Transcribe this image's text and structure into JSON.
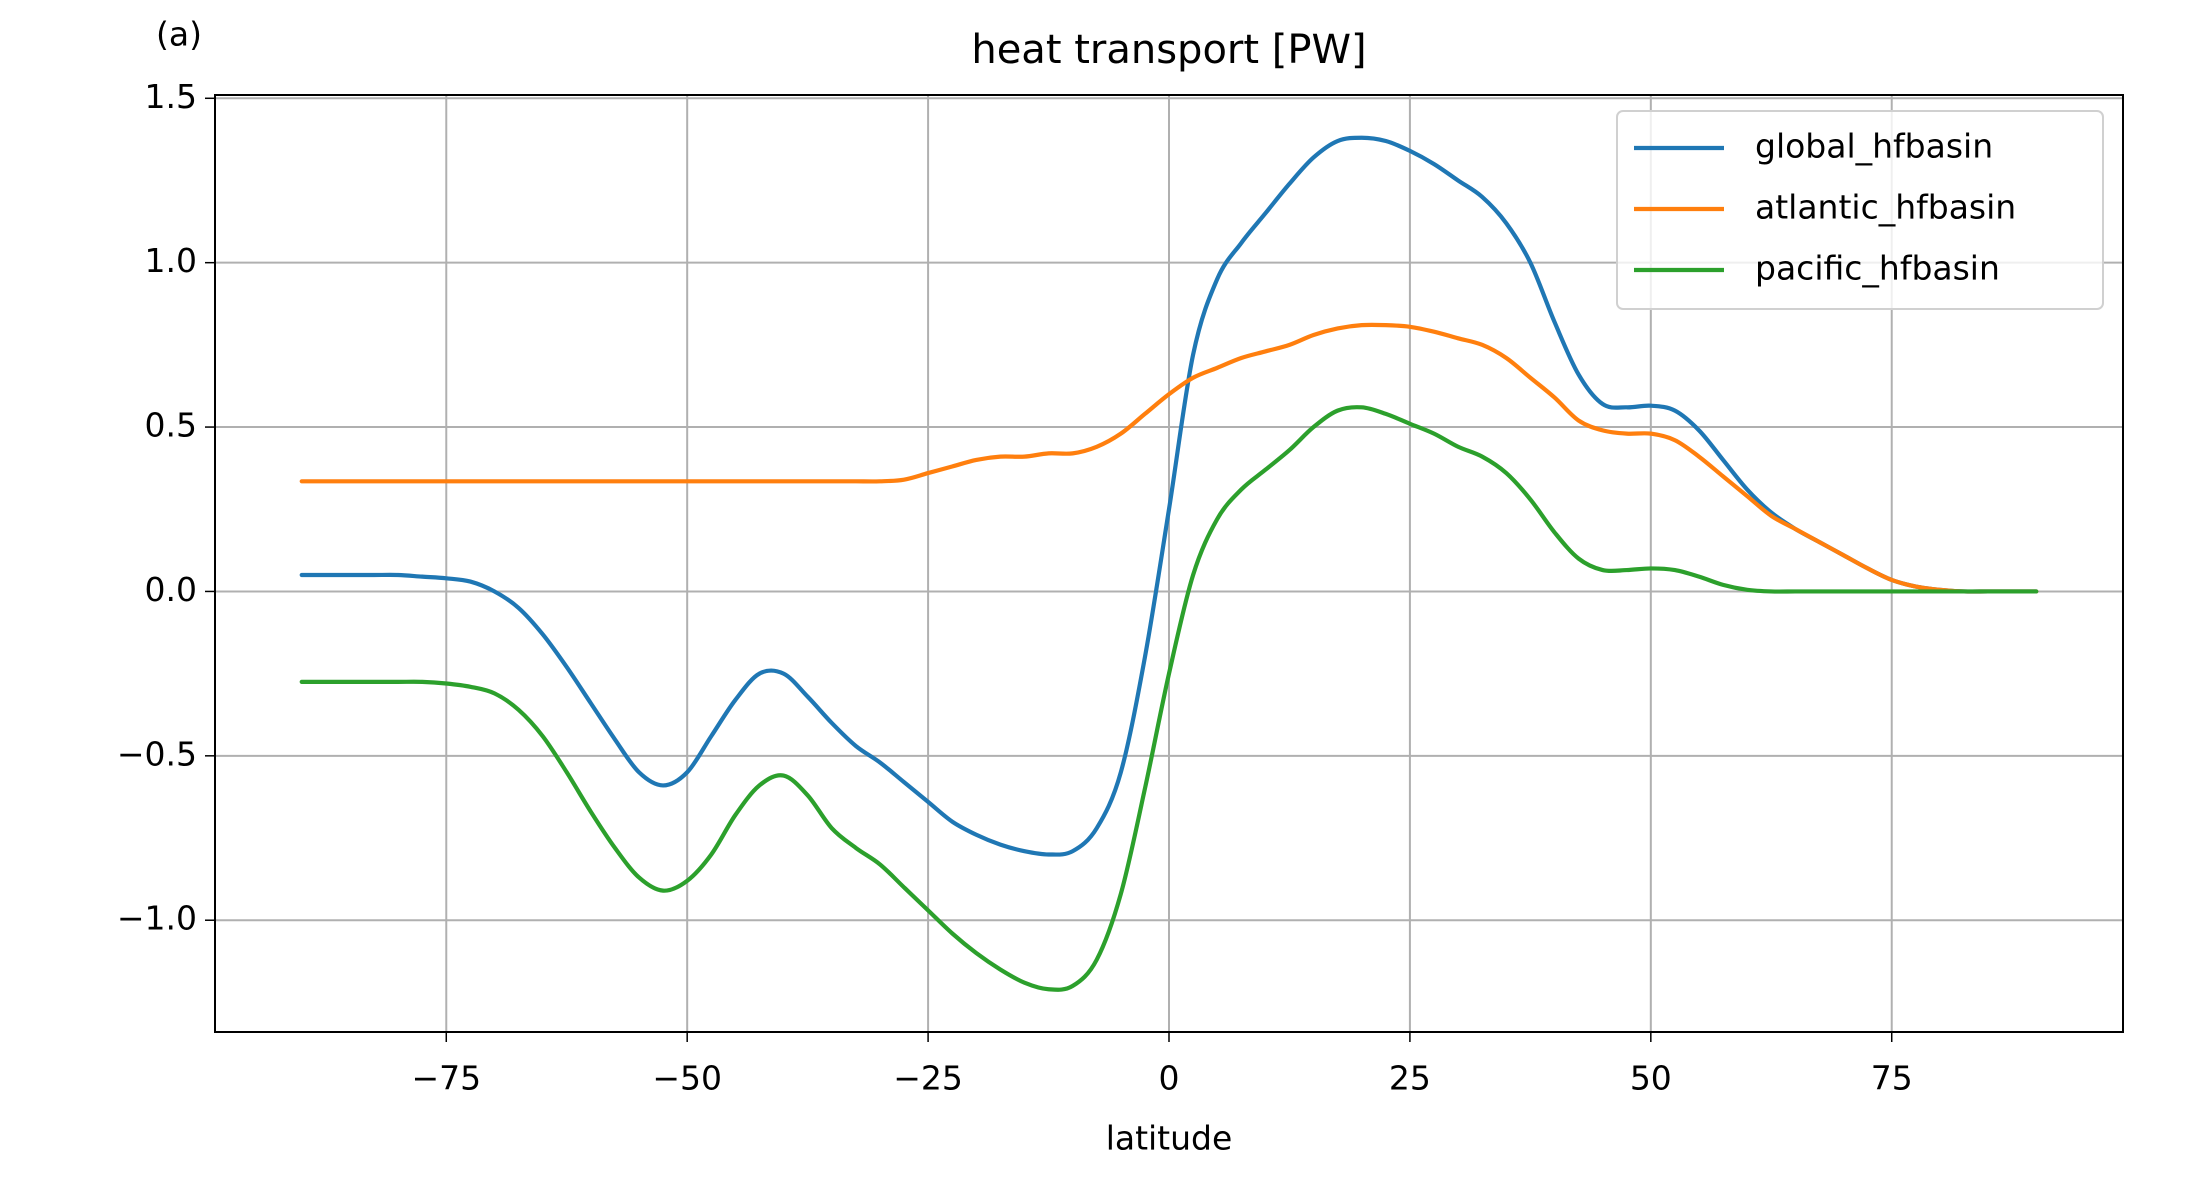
{
  "chart_data": {
    "type": "line",
    "annotation": "(a)",
    "title": "heat transport [PW]",
    "xlabel": "latitude",
    "x": [
      -90,
      -87.5,
      -85,
      -82.5,
      -80,
      -77.5,
      -75,
      -72.5,
      -70,
      -67.5,
      -65,
      -62.5,
      -60,
      -57.5,
      -55,
      -52.5,
      -50,
      -47.5,
      -45,
      -42.5,
      -40,
      -37.5,
      -35,
      -32.5,
      -30,
      -27.5,
      -25,
      -22.5,
      -20,
      -17.5,
      -15,
      -12.5,
      -10,
      -7.5,
      -5,
      -2.5,
      0,
      2.5,
      5,
      7.5,
      10,
      12.5,
      15,
      17.5,
      20,
      22.5,
      25,
      27.5,
      30,
      32.5,
      35,
      37.5,
      40,
      42.5,
      45,
      47.5,
      50,
      52.5,
      55,
      57.5,
      60,
      62.5,
      65,
      67.5,
      70,
      72.5,
      75,
      77.5,
      80,
      82.5,
      85,
      87.5,
      90
    ],
    "series": [
      {
        "name": "global_hfbasin",
        "color": "#1f77b4",
        "values": [
          0.05,
          0.05,
          0.05,
          0.05,
          0.05,
          0.045,
          0.04,
          0.03,
          0,
          -0.05,
          -0.13,
          -0.23,
          -0.34,
          -0.45,
          -0.55,
          -0.59,
          -0.55,
          -0.44,
          -0.33,
          -0.25,
          -0.25,
          -0.32,
          -0.4,
          -0.47,
          -0.52,
          -0.58,
          -0.64,
          -0.7,
          -0.74,
          -0.77,
          -0.79,
          -0.8,
          -0.79,
          -0.72,
          -0.55,
          -0.2,
          0.25,
          0.72,
          0.95,
          1.06,
          1.15,
          1.24,
          1.32,
          1.37,
          1.38,
          1.37,
          1.34,
          1.3,
          1.25,
          1.2,
          1.12,
          1.0,
          0.82,
          0.66,
          0.57,
          0.56,
          0.565,
          0.55,
          0.49,
          0.4,
          0.31,
          0.24,
          0.19,
          0.15,
          0.11,
          0.07,
          0.035,
          0.015,
          0.005,
          0,
          0,
          0,
          0
        ]
      },
      {
        "name": "atlantic_hfbasin",
        "color": "#ff7f0e",
        "values": [
          0.335,
          0.335,
          0.335,
          0.335,
          0.335,
          0.335,
          0.335,
          0.335,
          0.335,
          0.335,
          0.335,
          0.335,
          0.335,
          0.335,
          0.335,
          0.335,
          0.335,
          0.335,
          0.335,
          0.335,
          0.335,
          0.335,
          0.335,
          0.335,
          0.335,
          0.34,
          0.36,
          0.38,
          0.4,
          0.41,
          0.41,
          0.42,
          0.42,
          0.44,
          0.48,
          0.54,
          0.6,
          0.65,
          0.68,
          0.71,
          0.73,
          0.75,
          0.78,
          0.8,
          0.81,
          0.81,
          0.805,
          0.79,
          0.77,
          0.75,
          0.71,
          0.65,
          0.59,
          0.52,
          0.49,
          0.48,
          0.48,
          0.46,
          0.41,
          0.35,
          0.29,
          0.23,
          0.19,
          0.15,
          0.11,
          0.07,
          0.035,
          0.015,
          0.005,
          0,
          0,
          0,
          0
        ]
      },
      {
        "name": "pacific_hfbasin",
        "color": "#2ca02c",
        "values": [
          -0.275,
          -0.275,
          -0.275,
          -0.275,
          -0.275,
          -0.275,
          -0.28,
          -0.29,
          -0.31,
          -0.36,
          -0.44,
          -0.55,
          -0.67,
          -0.78,
          -0.87,
          -0.91,
          -0.88,
          -0.8,
          -0.68,
          -0.59,
          -0.56,
          -0.62,
          -0.72,
          -0.78,
          -0.83,
          -0.9,
          -0.97,
          -1.04,
          -1.1,
          -1.15,
          -1.19,
          -1.21,
          -1.2,
          -1.12,
          -0.92,
          -0.6,
          -0.25,
          0.05,
          0.22,
          0.31,
          0.37,
          0.43,
          0.5,
          0.55,
          0.56,
          0.54,
          0.51,
          0.48,
          0.44,
          0.41,
          0.36,
          0.28,
          0.18,
          0.1,
          0.065,
          0.065,
          0.07,
          0.065,
          0.045,
          0.02,
          0.005,
          0,
          0,
          0,
          0,
          0,
          0,
          0,
          0,
          0,
          0,
          0,
          0
        ]
      }
    ],
    "xlim": [
      -99,
      99
    ],
    "xticks": [
      {
        "value": -75,
        "label": "−75"
      },
      {
        "value": -50,
        "label": "−50"
      },
      {
        "value": -25,
        "label": "−25"
      },
      0,
      25,
      50,
      75
    ],
    "ylim": [
      -1.34,
      1.51
    ],
    "yticks": [
      {
        "value": -1,
        "label": "−1.0"
      },
      {
        "value": -0.5,
        "label": "−0.5"
      },
      {
        "value": 0,
        "label": "0.0"
      },
      0.5,
      {
        "value": 1,
        "label": "1.0"
      },
      1.5
    ],
    "grid": true,
    "legend": "upper right"
  }
}
